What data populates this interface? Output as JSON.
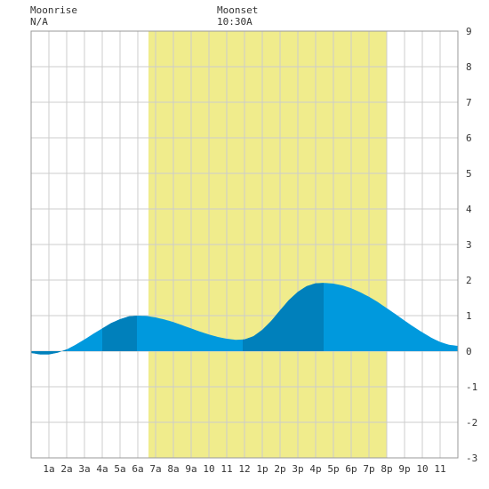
{
  "header": {
    "moonrise_label": "Moonrise",
    "moonrise_value": "N/A",
    "moonset_label": "Moonset",
    "moonset_value": "10:30A"
  },
  "colors": {
    "daylight": "#f0ec8c",
    "tide_light": "#0099dd",
    "tide_dark": "#0080bb",
    "grid": "#cccccc",
    "border": "#999999"
  },
  "chart_data": {
    "type": "area",
    "title": "",
    "xlabel": "",
    "ylabel": "",
    "x_range": [
      0,
      24
    ],
    "ylim": [
      -3,
      9
    ],
    "y_ticks": [
      -3,
      -2,
      -1,
      0,
      1,
      2,
      3,
      4,
      5,
      6,
      7,
      8,
      9
    ],
    "x_ticks": [
      {
        "h": 1,
        "label": "1a"
      },
      {
        "h": 2,
        "label": "2a"
      },
      {
        "h": 3,
        "label": "3a"
      },
      {
        "h": 4,
        "label": "4a"
      },
      {
        "h": 5,
        "label": "5a"
      },
      {
        "h": 6,
        "label": "6a"
      },
      {
        "h": 7,
        "label": "7a"
      },
      {
        "h": 8,
        "label": "8a"
      },
      {
        "h": 9,
        "label": "9a"
      },
      {
        "h": 10,
        "label": "10"
      },
      {
        "h": 11,
        "label": "11"
      },
      {
        "h": 12,
        "label": "12"
      },
      {
        "h": 13,
        "label": "1p"
      },
      {
        "h": 14,
        "label": "2p"
      },
      {
        "h": 15,
        "label": "3p"
      },
      {
        "h": 16,
        "label": "4p"
      },
      {
        "h": 17,
        "label": "5p"
      },
      {
        "h": 18,
        "label": "6p"
      },
      {
        "h": 19,
        "label": "7p"
      },
      {
        "h": 20,
        "label": "8p"
      },
      {
        "h": 21,
        "label": "9p"
      },
      {
        "h": 22,
        "label": "10"
      },
      {
        "h": 23,
        "label": "11"
      }
    ],
    "daylight": {
      "start": 6.6,
      "end": 20.0
    },
    "extremes": [
      {
        "t": 0.0,
        "v": -0.05
      },
      {
        "t": 0.8,
        "v": -0.1
      },
      {
        "t": 5.95,
        "v": 1.0
      },
      {
        "t": 12.0,
        "v": 0.32
      },
      {
        "t": 16.45,
        "v": 1.92
      },
      {
        "t": 24.0,
        "v": 0.15
      }
    ],
    "dark_segments": [
      {
        "start": 0.0,
        "end": 2.0
      },
      {
        "start": 4.0,
        "end": 5.95
      },
      {
        "start": 11.9,
        "end": 16.45
      }
    ],
    "tide_height": [
      {
        "t": 0.0,
        "v": -0.05
      },
      {
        "t": 0.5,
        "v": -0.09
      },
      {
        "t": 1.0,
        "v": -0.09
      },
      {
        "t": 1.5,
        "v": -0.04
      },
      {
        "t": 2.0,
        "v": 0.05
      },
      {
        "t": 2.5,
        "v": 0.18
      },
      {
        "t": 3.0,
        "v": 0.33
      },
      {
        "t": 3.5,
        "v": 0.49
      },
      {
        "t": 4.0,
        "v": 0.64
      },
      {
        "t": 4.5,
        "v": 0.79
      },
      {
        "t": 5.0,
        "v": 0.9
      },
      {
        "t": 5.5,
        "v": 0.98
      },
      {
        "t": 6.0,
        "v": 1.0
      },
      {
        "t": 6.5,
        "v": 0.99
      },
      {
        "t": 7.0,
        "v": 0.95
      },
      {
        "t": 7.5,
        "v": 0.89
      },
      {
        "t": 8.0,
        "v": 0.82
      },
      {
        "t": 8.5,
        "v": 0.73
      },
      {
        "t": 9.0,
        "v": 0.64
      },
      {
        "t": 9.5,
        "v": 0.55
      },
      {
        "t": 10.0,
        "v": 0.47
      },
      {
        "t": 10.5,
        "v": 0.4
      },
      {
        "t": 11.0,
        "v": 0.35
      },
      {
        "t": 11.5,
        "v": 0.32
      },
      {
        "t": 12.0,
        "v": 0.33
      },
      {
        "t": 12.5,
        "v": 0.42
      },
      {
        "t": 13.0,
        "v": 0.6
      },
      {
        "t": 13.5,
        "v": 0.85
      },
      {
        "t": 14.0,
        "v": 1.15
      },
      {
        "t": 14.5,
        "v": 1.44
      },
      {
        "t": 15.0,
        "v": 1.67
      },
      {
        "t": 15.5,
        "v": 1.83
      },
      {
        "t": 16.0,
        "v": 1.91
      },
      {
        "t": 16.5,
        "v": 1.92
      },
      {
        "t": 17.0,
        "v": 1.9
      },
      {
        "t": 17.5,
        "v": 1.85
      },
      {
        "t": 18.0,
        "v": 1.77
      },
      {
        "t": 18.5,
        "v": 1.66
      },
      {
        "t": 19.0,
        "v": 1.53
      },
      {
        "t": 19.5,
        "v": 1.38
      },
      {
        "t": 20.0,
        "v": 1.21
      },
      {
        "t": 20.5,
        "v": 1.04
      },
      {
        "t": 21.0,
        "v": 0.86
      },
      {
        "t": 21.5,
        "v": 0.69
      },
      {
        "t": 22.0,
        "v": 0.53
      },
      {
        "t": 22.5,
        "v": 0.38
      },
      {
        "t": 23.0,
        "v": 0.26
      },
      {
        "t": 23.5,
        "v": 0.18
      },
      {
        "t": 24.0,
        "v": 0.15
      }
    ]
  }
}
